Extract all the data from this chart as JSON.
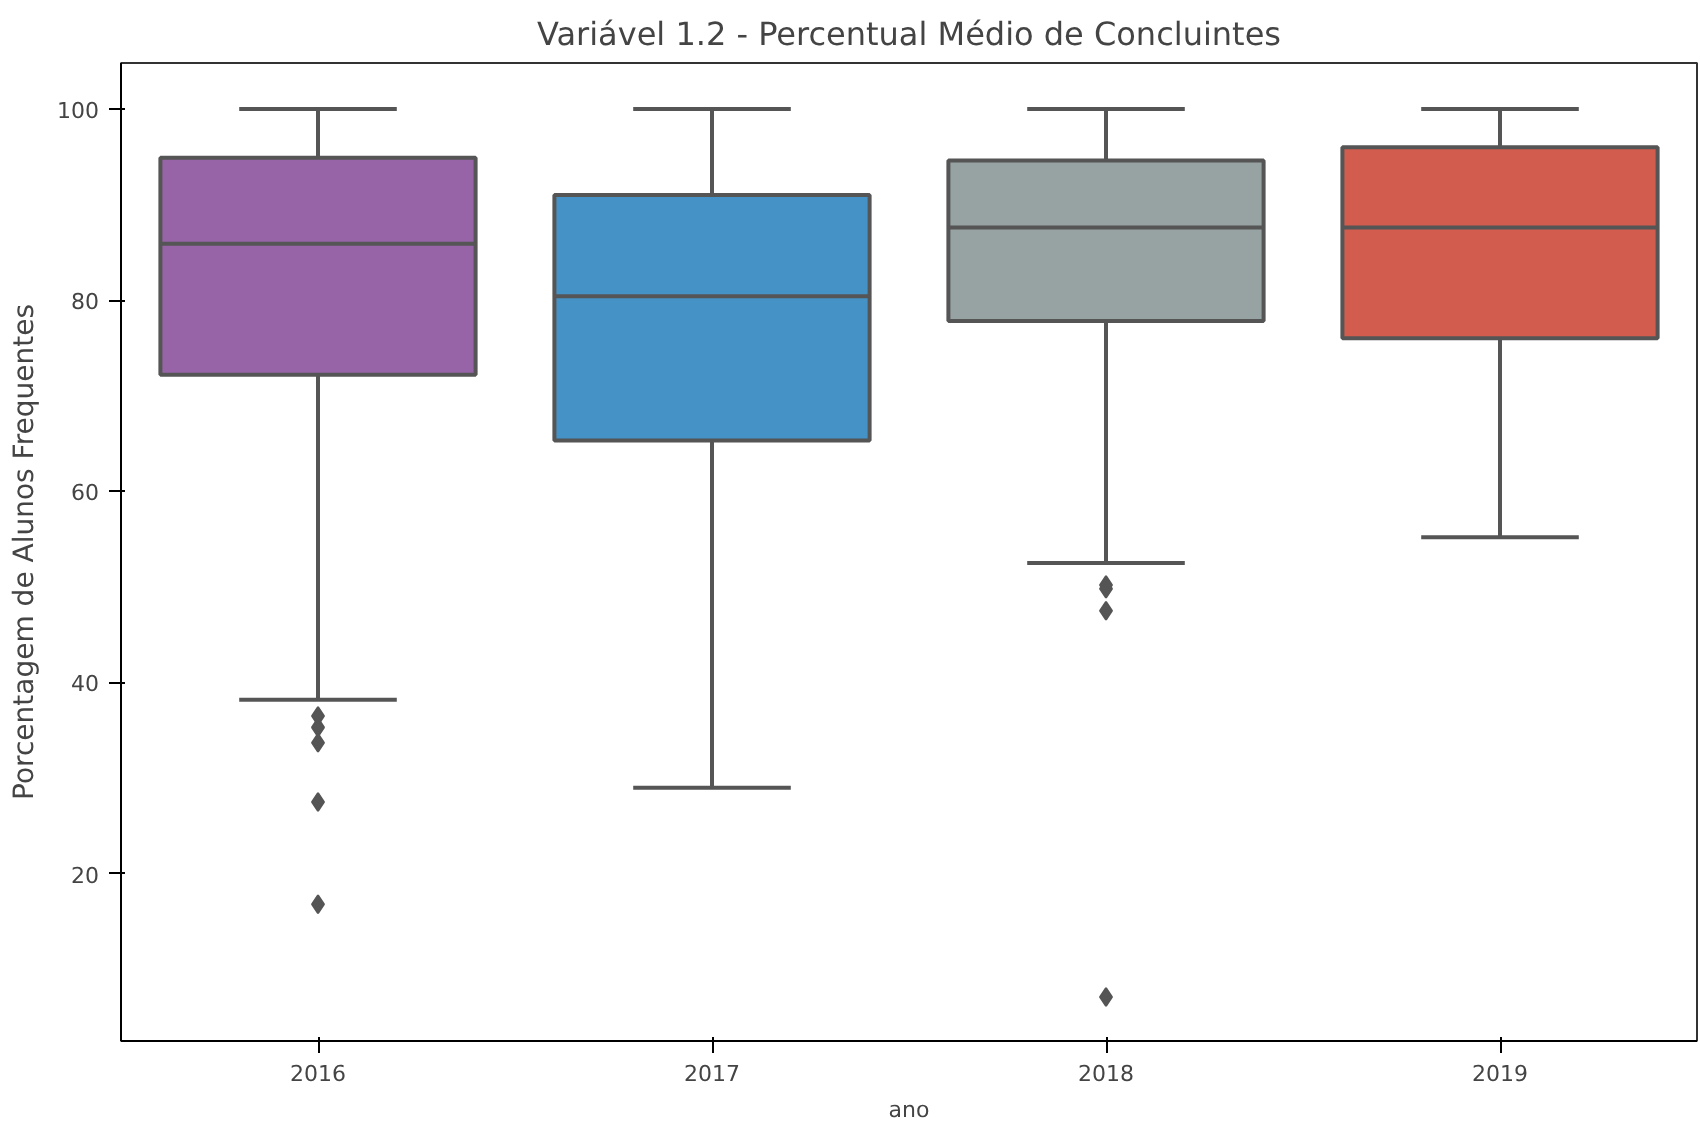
{
  "chart_data": {
    "type": "box",
    "title": "Variável 1.2 - Percentual Médio de Concluintes",
    "xlabel": "ano",
    "ylabel": "Porcentagem de Alunos Frequentes",
    "categories": [
      "2016",
      "2017",
      "2018",
      "2019"
    ],
    "colors": [
      "#9664a7",
      "#4592c6",
      "#97a2a3",
      "#d25d4f"
    ],
    "boxes": [
      {
        "low": 38.2,
        "q1": 72.2,
        "median": 85.9,
        "q3": 94.9,
        "high": 100,
        "outliers": [
          36.5,
          35.3,
          33.7,
          27.5,
          16.8
        ]
      },
      {
        "low": 29.0,
        "q1": 65.3,
        "median": 80.4,
        "q3": 91.0,
        "high": 100
      },
      {
        "low": 52.5,
        "q1": 77.8,
        "median": 87.6,
        "q3": 94.6,
        "high": 100,
        "outliers": [
          50.2,
          49.8,
          47.5,
          7.1
        ]
      },
      {
        "low": 55.2,
        "q1": 76.0,
        "median": 87.6,
        "q3": 96.0,
        "high": 100
      }
    ],
    "ylim": [
      2.5,
      104.8
    ],
    "yticks": [
      20,
      40,
      60,
      80,
      100
    ],
    "grid": false,
    "marker": "diamond"
  }
}
